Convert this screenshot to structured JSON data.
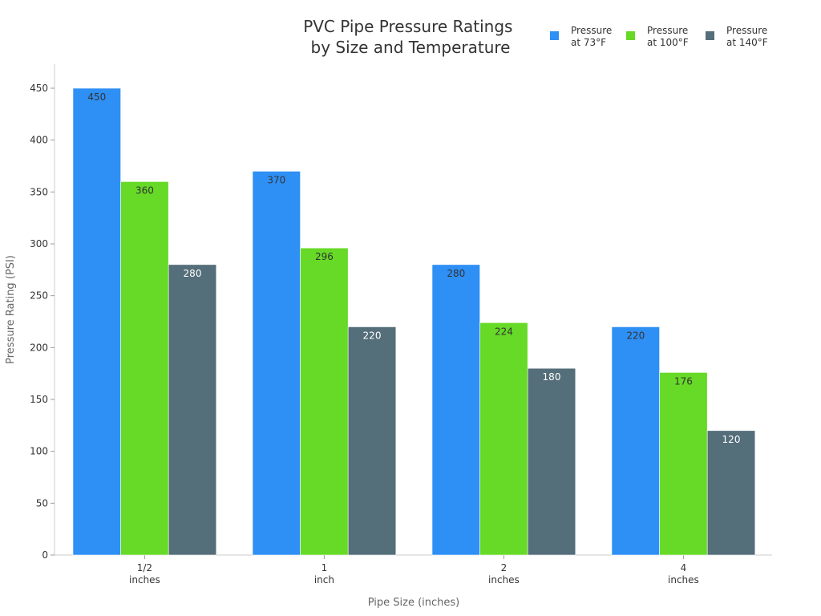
{
  "chart_data": {
    "type": "bar",
    "title": [
      "PVC Pipe Pressure Ratings",
      "by Size and Temperature"
    ],
    "xlabel": "Pipe Size (inches)",
    "ylabel": "Pressure Rating (PSI)",
    "categories": [
      [
        "1/2",
        "inches"
      ],
      [
        "1",
        "inch"
      ],
      [
        "2",
        "inches"
      ],
      [
        "4",
        "inches"
      ]
    ],
    "ylim": [
      0,
      450
    ],
    "yticks": [
      0,
      50,
      100,
      150,
      200,
      250,
      300,
      350,
      400,
      450
    ],
    "grid": false,
    "legend_position": "top-right",
    "series": [
      {
        "name": [
          "Pressure",
          "at 73°F"
        ],
        "color": "#2e8ff5",
        "label_color": "#333333",
        "values": [
          450,
          370,
          280,
          220
        ]
      },
      {
        "name": [
          "Pressure",
          "at 100°F"
        ],
        "color": "#66da26",
        "label_color": "#333333",
        "values": [
          360,
          296,
          224,
          176
        ]
      },
      {
        "name": [
          "Pressure",
          "at 140°F"
        ],
        "color": "#546e7a",
        "label_color": "#ffffff",
        "values": [
          280,
          220,
          180,
          120
        ]
      }
    ]
  }
}
